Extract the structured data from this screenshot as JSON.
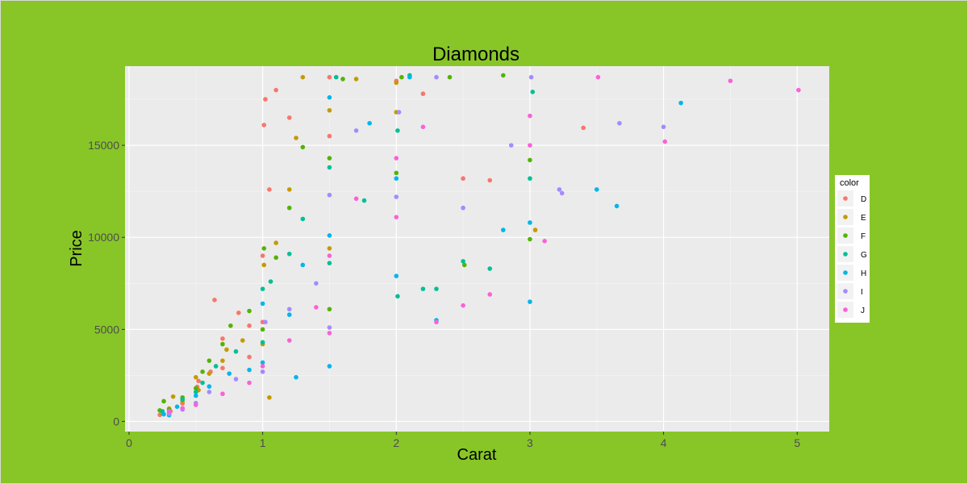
{
  "chart_data": {
    "type": "scatter",
    "title": "Diamonds",
    "xlabel": "Carat",
    "ylabel": "Price",
    "xlim": [
      -0.03,
      5.24
    ],
    "ylim": [
      -550,
      19300
    ],
    "x_ticks": [
      0,
      1,
      2,
      3,
      4,
      5
    ],
    "x_tick_labels": [
      "0",
      "1",
      "2",
      "3",
      "4",
      "5"
    ],
    "y_ticks": [
      0,
      5000,
      10000,
      15000
    ],
    "y_tick_labels": [
      "0",
      "5000",
      "10000",
      "15000"
    ],
    "grid": true,
    "legend": {
      "title": "color",
      "placement": "right",
      "entries": [
        {
          "label": "D",
          "color": "#f8766d"
        },
        {
          "label": "E",
          "color": "#c49a00"
        },
        {
          "label": "F",
          "color": "#53b400"
        },
        {
          "label": "G",
          "color": "#00c094"
        },
        {
          "label": "H",
          "color": "#00b6eb"
        },
        {
          "label": "I",
          "color": "#a58aff"
        },
        {
          "label": "J",
          "color": "#fb61d7"
        }
      ]
    },
    "series": [
      {
        "name": "D",
        "color": "#f8766d",
        "points": [
          [
            0.23,
            357
          ],
          [
            0.3,
            506
          ],
          [
            0.31,
            560
          ],
          [
            0.4,
            980
          ],
          [
            0.51,
            1880
          ],
          [
            0.52,
            2200
          ],
          [
            0.61,
            2700
          ],
          [
            0.64,
            6600
          ],
          [
            0.7,
            2900
          ],
          [
            0.7,
            4500
          ],
          [
            0.82,
            5900
          ],
          [
            0.9,
            3500
          ],
          [
            0.9,
            5200
          ],
          [
            1.0,
            5400
          ],
          [
            1.0,
            9000
          ],
          [
            1.01,
            16100
          ],
          [
            1.02,
            17500
          ],
          [
            1.05,
            12600
          ],
          [
            1.1,
            18000
          ],
          [
            1.2,
            16500
          ],
          [
            1.5,
            15500
          ],
          [
            1.5,
            18700
          ],
          [
            2.0,
            18500
          ],
          [
            2.2,
            17800
          ],
          [
            2.5,
            13200
          ],
          [
            2.7,
            13100
          ],
          [
            3.4,
            15950
          ]
        ]
      },
      {
        "name": "E",
        "color": "#c49a00",
        "points": [
          [
            0.25,
            420
          ],
          [
            0.3,
            700
          ],
          [
            0.33,
            1350
          ],
          [
            0.4,
            1100
          ],
          [
            0.5,
            2400
          ],
          [
            0.52,
            1700
          ],
          [
            0.6,
            2600
          ],
          [
            0.7,
            3300
          ],
          [
            0.73,
            3900
          ],
          [
            0.85,
            4400
          ],
          [
            1.0,
            4200
          ],
          [
            1.01,
            8500
          ],
          [
            1.05,
            1300
          ],
          [
            1.1,
            9700
          ],
          [
            1.2,
            12600
          ],
          [
            1.25,
            15400
          ],
          [
            1.3,
            18700
          ],
          [
            1.5,
            9400
          ],
          [
            1.5,
            16900
          ],
          [
            1.7,
            18600
          ],
          [
            2.0,
            16800
          ],
          [
            2.0,
            18400
          ],
          [
            3.04,
            10400
          ]
        ]
      },
      {
        "name": "F",
        "color": "#53b400",
        "points": [
          [
            0.23,
            600
          ],
          [
            0.26,
            1100
          ],
          [
            0.3,
            650
          ],
          [
            0.4,
            1300
          ],
          [
            0.5,
            1800
          ],
          [
            0.55,
            2700
          ],
          [
            0.6,
            3300
          ],
          [
            0.7,
            4200
          ],
          [
            0.76,
            5200
          ],
          [
            0.9,
            6000
          ],
          [
            1.0,
            5000
          ],
          [
            1.01,
            9400
          ],
          [
            1.1,
            8900
          ],
          [
            1.2,
            11600
          ],
          [
            1.3,
            14900
          ],
          [
            1.5,
            6100
          ],
          [
            1.5,
            14300
          ],
          [
            1.6,
            18600
          ],
          [
            2.0,
            13500
          ],
          [
            2.04,
            18700
          ],
          [
            2.4,
            18700
          ],
          [
            2.51,
            8500
          ],
          [
            2.8,
            18800
          ],
          [
            3.0,
            14200
          ],
          [
            3.0,
            9900
          ]
        ]
      },
      {
        "name": "G",
        "color": "#00c094",
        "points": [
          [
            0.25,
            550
          ],
          [
            0.3,
            480
          ],
          [
            0.4,
            1200
          ],
          [
            0.5,
            1600
          ],
          [
            0.55,
            2100
          ],
          [
            0.65,
            3000
          ],
          [
            0.8,
            3800
          ],
          [
            1.0,
            4300
          ],
          [
            1.0,
            7200
          ],
          [
            1.06,
            7600
          ],
          [
            1.2,
            9100
          ],
          [
            1.3,
            11000
          ],
          [
            1.5,
            8600
          ],
          [
            1.5,
            13800
          ],
          [
            1.55,
            18700
          ],
          [
            1.76,
            12000
          ],
          [
            2.01,
            6800
          ],
          [
            2.01,
            15800
          ],
          [
            2.1,
            18800
          ],
          [
            2.2,
            7200
          ],
          [
            2.3,
            7200
          ],
          [
            2.5,
            8700
          ],
          [
            2.7,
            8300
          ],
          [
            3.0,
            13200
          ],
          [
            3.02,
            17900
          ]
        ]
      },
      {
        "name": "H",
        "color": "#00b6eb",
        "points": [
          [
            0.26,
            390
          ],
          [
            0.3,
            340
          ],
          [
            0.36,
            800
          ],
          [
            0.5,
            1400
          ],
          [
            0.6,
            1900
          ],
          [
            0.75,
            2600
          ],
          [
            0.9,
            2800
          ],
          [
            1.0,
            3200
          ],
          [
            1.0,
            6400
          ],
          [
            1.2,
            5800
          ],
          [
            1.25,
            2400
          ],
          [
            1.3,
            8500
          ],
          [
            1.5,
            3000
          ],
          [
            1.5,
            10100
          ],
          [
            1.5,
            17600
          ],
          [
            1.8,
            16200
          ],
          [
            2.0,
            7900
          ],
          [
            2.0,
            13200
          ],
          [
            2.1,
            18700
          ],
          [
            2.3,
            5500
          ],
          [
            2.8,
            10400
          ],
          [
            3.0,
            6500
          ],
          [
            3.0,
            10800
          ],
          [
            3.5,
            12600
          ],
          [
            3.65,
            11700
          ],
          [
            4.13,
            17300
          ]
        ]
      },
      {
        "name": "I",
        "color": "#a58aff",
        "points": [
          [
            0.3,
            420
          ],
          [
            0.4,
            650
          ],
          [
            0.5,
            1000
          ],
          [
            0.6,
            1600
          ],
          [
            0.8,
            2300
          ],
          [
            1.0,
            2700
          ],
          [
            1.02,
            5400
          ],
          [
            1.2,
            6100
          ],
          [
            1.4,
            7500
          ],
          [
            1.5,
            5100
          ],
          [
            1.5,
            12300
          ],
          [
            1.7,
            15800
          ],
          [
            2.0,
            12200
          ],
          [
            2.02,
            16800
          ],
          [
            2.3,
            18700
          ],
          [
            2.5,
            11600
          ],
          [
            2.86,
            15000
          ],
          [
            3.01,
            18700
          ],
          [
            3.22,
            12600
          ],
          [
            3.24,
            12400
          ],
          [
            3.67,
            16200
          ],
          [
            4.0,
            16000
          ]
        ]
      },
      {
        "name": "J",
        "color": "#fb61d7",
        "points": [
          [
            0.3,
            560
          ],
          [
            0.4,
            720
          ],
          [
            0.5,
            900
          ],
          [
            0.7,
            1500
          ],
          [
            0.9,
            2100
          ],
          [
            1.0,
            3000
          ],
          [
            1.2,
            4400
          ],
          [
            1.4,
            6200
          ],
          [
            1.5,
            4800
          ],
          [
            1.5,
            9000
          ],
          [
            1.7,
            12100
          ],
          [
            2.0,
            11100
          ],
          [
            2.0,
            14300
          ],
          [
            2.2,
            16000
          ],
          [
            2.3,
            5400
          ],
          [
            2.5,
            6300
          ],
          [
            2.7,
            6900
          ],
          [
            3.0,
            15000
          ],
          [
            3.0,
            16600
          ],
          [
            3.11,
            9800
          ],
          [
            3.51,
            18700
          ],
          [
            4.01,
            15200
          ],
          [
            4.5,
            18500
          ],
          [
            5.01,
            18000
          ]
        ]
      }
    ]
  }
}
